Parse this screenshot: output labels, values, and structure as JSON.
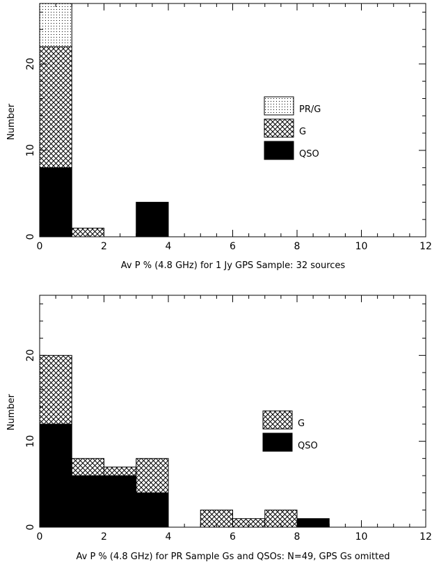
{
  "colors": {
    "ink": "#000000",
    "background": "#ffffff"
  },
  "chart_data": [
    {
      "type": "bar",
      "stacked": true,
      "title": "",
      "xlabel": "Av P % (4.8 GHz) for 1 Jy GPS Sample:  32 sources",
      "ylabel": "Number",
      "xlim": [
        0,
        12
      ],
      "ylim": [
        0,
        27
      ],
      "xticks": [
        "0",
        "2",
        "4",
        "6",
        "8",
        "10",
        "12"
      ],
      "yticks": [
        "0",
        "10",
        "20"
      ],
      "bins": [
        [
          0,
          1
        ],
        [
          1,
          2
        ],
        [
          2,
          3
        ],
        [
          3,
          4
        ],
        [
          4,
          5
        ],
        [
          5,
          6
        ],
        [
          6,
          7
        ],
        [
          7,
          8
        ],
        [
          8,
          9
        ],
        [
          9,
          10
        ],
        [
          10,
          11
        ],
        [
          11,
          12
        ]
      ],
      "series": [
        {
          "name": "QSO",
          "pattern": "solid",
          "values": [
            8,
            0,
            0,
            4,
            0,
            0,
            0,
            0,
            0,
            0,
            0,
            0
          ]
        },
        {
          "name": "G",
          "pattern": "crosshatch",
          "values": [
            14,
            1,
            0,
            0,
            0,
            0,
            0,
            0,
            0,
            0,
            0,
            0
          ]
        },
        {
          "name": "PR/G",
          "pattern": "dotted",
          "values": [
            5,
            0,
            0,
            0,
            0,
            0,
            0,
            0,
            0,
            0,
            0,
            0
          ]
        }
      ],
      "legend_order": [
        "PR/G",
        "G",
        "QSO"
      ],
      "legend_position": "center-right",
      "grid": false
    },
    {
      "type": "bar",
      "stacked": true,
      "title": "",
      "xlabel": "Av P % (4.8 GHz) for PR Sample Gs and QSOs: N=49, GPS Gs omitted",
      "ylabel": "Number",
      "xlim": [
        0,
        12
      ],
      "ylim": [
        0,
        27
      ],
      "xticks": [
        "0",
        "2",
        "4",
        "6",
        "8",
        "10",
        "12"
      ],
      "yticks": [
        "0",
        "10",
        "20"
      ],
      "bins": [
        [
          0,
          1
        ],
        [
          1,
          2
        ],
        [
          2,
          3
        ],
        [
          3,
          4
        ],
        [
          4,
          5
        ],
        [
          5,
          6
        ],
        [
          6,
          7
        ],
        [
          7,
          8
        ],
        [
          8,
          9
        ],
        [
          9,
          10
        ],
        [
          10,
          11
        ],
        [
          11,
          12
        ]
      ],
      "series": [
        {
          "name": "QSO",
          "pattern": "solid",
          "values": [
            12,
            6,
            6,
            4,
            0,
            0,
            0,
            0,
            1,
            0,
            0,
            0
          ]
        },
        {
          "name": "G",
          "pattern": "crosshatch",
          "values": [
            8,
            2,
            1,
            4,
            0,
            2,
            1,
            2,
            0,
            0,
            0,
            0
          ]
        }
      ],
      "legend_order": [
        "G",
        "QSO"
      ],
      "legend_position": "center-right",
      "grid": false
    }
  ]
}
